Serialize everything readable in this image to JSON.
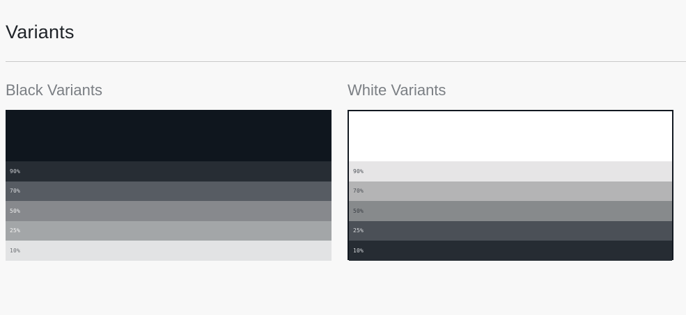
{
  "title": "Variants",
  "black": {
    "heading": "Black Variants",
    "base_color": "#0f161e",
    "rows": [
      {
        "label": "90%",
        "bg": "#272d34",
        "fg": "#c9ccd0"
      },
      {
        "label": "70%",
        "bg": "#575c63",
        "fg": "#d8dadd"
      },
      {
        "label": "50%",
        "bg": "#87898d",
        "fg": "#eceded"
      },
      {
        "label": "25%",
        "bg": "#a3a6a8",
        "fg": "#f3f3f3"
      },
      {
        "label": "10%",
        "bg": "#e2e3e4",
        "fg": "#6b6e72"
      }
    ]
  },
  "white": {
    "heading": "White Variants",
    "base_color": "#ffffff",
    "border_color": "#121820",
    "rows": [
      {
        "label": "90%",
        "bg": "#e6e5e6",
        "fg": "#50545a"
      },
      {
        "label": "70%",
        "bg": "#b4b4b5",
        "fg": "#4b4f55"
      },
      {
        "label": "50%",
        "bg": "#878a8c",
        "fg": "#3a3e44"
      },
      {
        "label": "25%",
        "bg": "#4b5057",
        "fg": "#d8dadd"
      },
      {
        "label": "10%",
        "bg": "#262c33",
        "fg": "#d0d3d7"
      }
    ]
  }
}
